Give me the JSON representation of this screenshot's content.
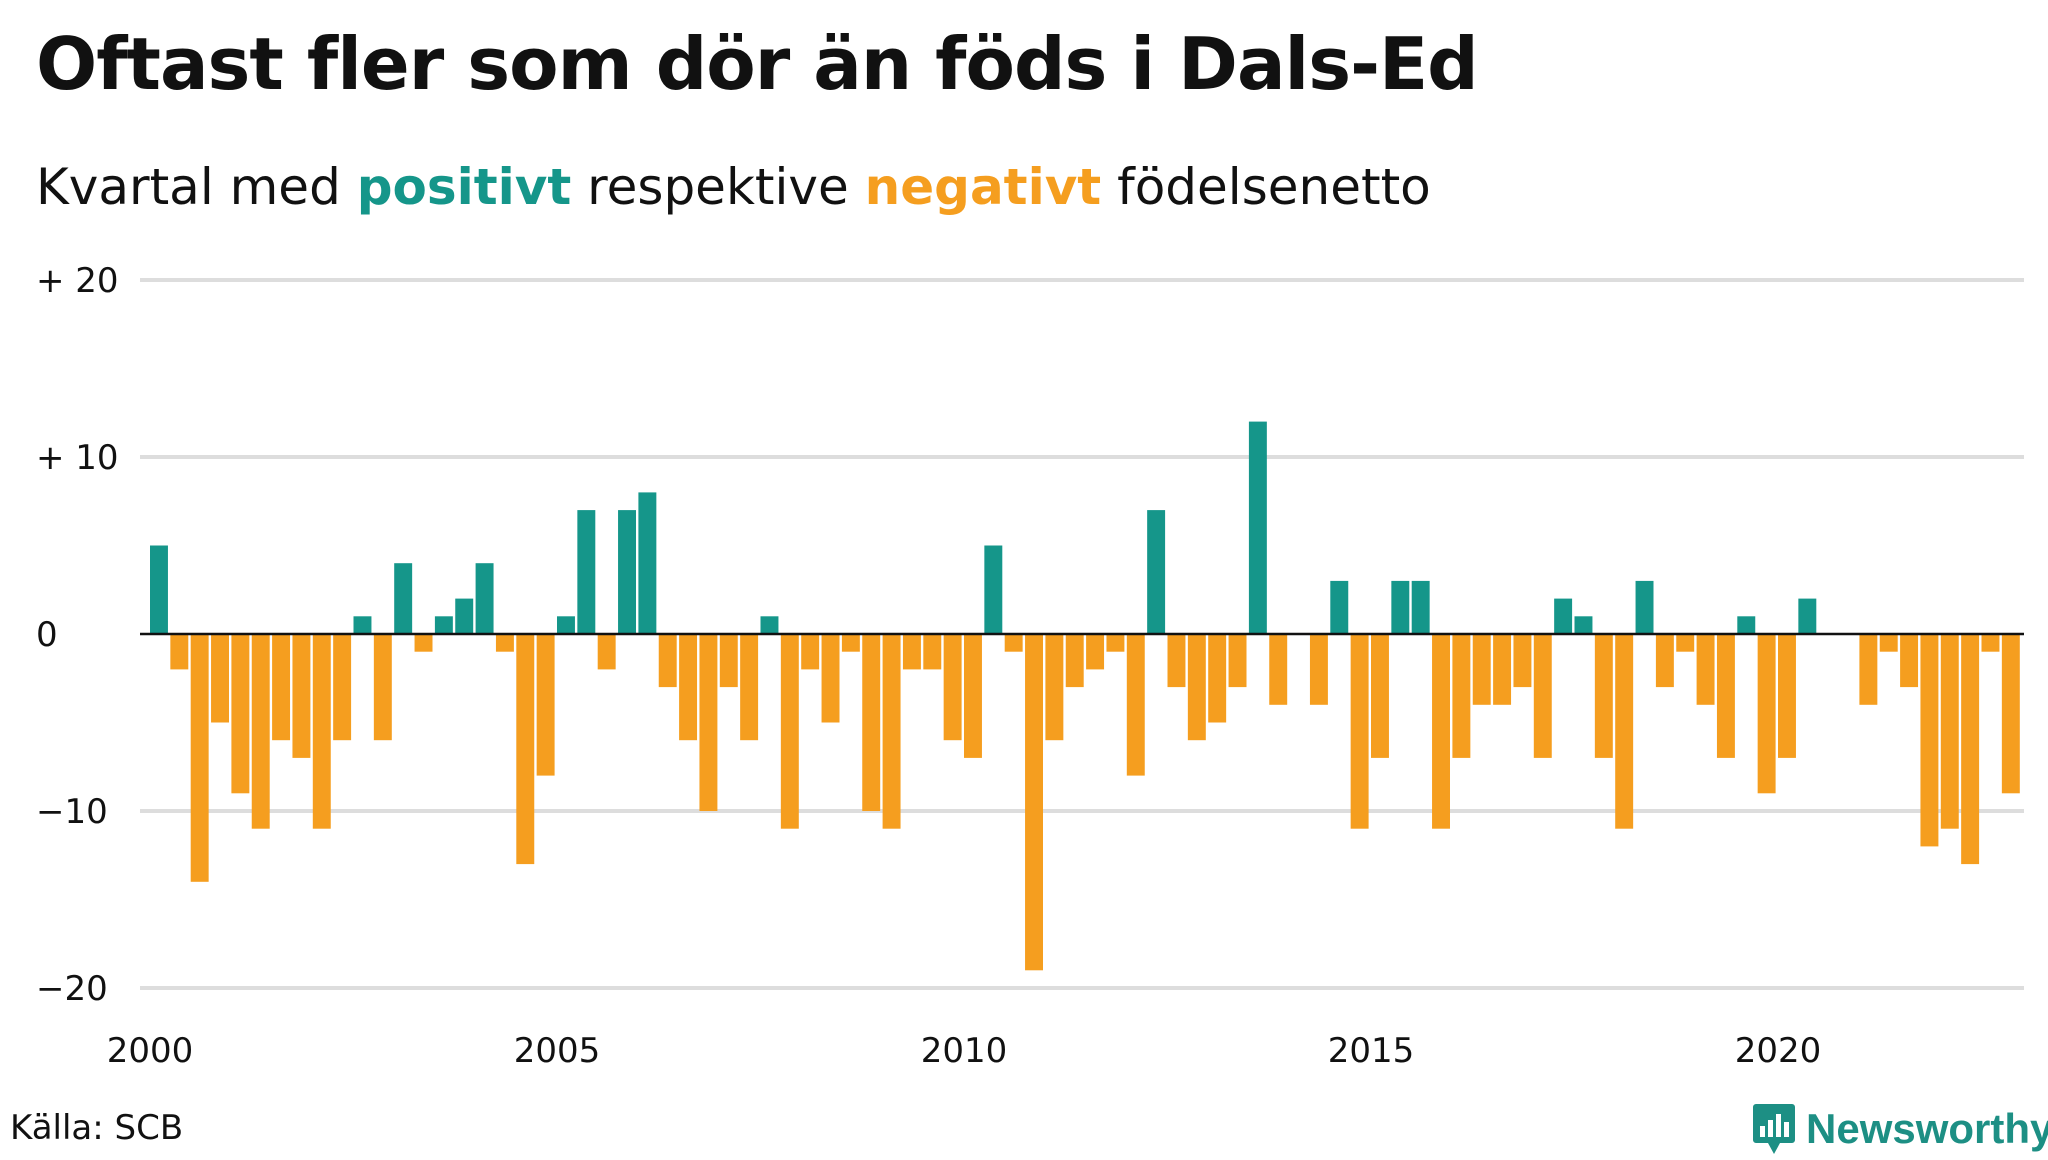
{
  "title": "Oftast fler som dör än föds i Dals-Ed",
  "subtitle": {
    "prefix": "Kvartal med ",
    "positive_word": "positivt",
    "middle": " respektive ",
    "negative_word": "negativt",
    "suffix": " födelsenetto"
  },
  "source": "Källa: SCB",
  "brand": {
    "name": "Newsworthy",
    "icon": "newsworthy-logo-icon",
    "color": "#1d8f84"
  },
  "colors": {
    "positive": "#15968a",
    "negative": "#f59e1f",
    "grid": "#dddddd",
    "zero": "#111111"
  },
  "chart_data": {
    "type": "bar",
    "title": "Oftast fler som dör än föds i Dals-Ed",
    "subtitle": "Kvartal med positivt respektive negativt födelsenetto",
    "x_start": 2000,
    "x_step": 0.25,
    "values": [
      5,
      -2,
      -14,
      -5,
      -9,
      -11,
      -6,
      -7,
      -11,
      -6,
      1,
      -6,
      4,
      -1,
      1,
      2,
      4,
      -1,
      -13,
      -8,
      1,
      7,
      -2,
      7,
      8,
      -3,
      -6,
      -10,
      -3,
      -6,
      1,
      -11,
      -2,
      -5,
      -1,
      -10,
      -11,
      -2,
      -2,
      -6,
      -7,
      5,
      -1,
      -19,
      -6,
      -3,
      -2,
      -1,
      -8,
      7,
      -3,
      -6,
      -5,
      -3,
      12,
      -4,
      0,
      -4,
      3,
      -11,
      -7,
      3,
      3,
      -11,
      -7,
      -4,
      -4,
      -3,
      -7,
      2,
      1,
      -7,
      -11,
      3,
      -3,
      -1,
      -4,
      -7,
      1,
      -9,
      -7,
      2,
      0,
      0,
      -4,
      -1,
      -3,
      -12,
      -11,
      -13,
      -1,
      -9
    ],
    "ylim": [
      -20,
      20
    ],
    "yticks": [
      20,
      10,
      0,
      -10,
      -20
    ],
    "ytick_labels": [
      "+ 20",
      "+ 10",
      "0",
      "−10",
      "−20"
    ],
    "xticks": [
      2000,
      2005,
      2010,
      2015,
      2020
    ],
    "xtick_labels": [
      "2000",
      "2005",
      "2010",
      "2015",
      "2020"
    ],
    "grid": true,
    "legend": "none"
  }
}
